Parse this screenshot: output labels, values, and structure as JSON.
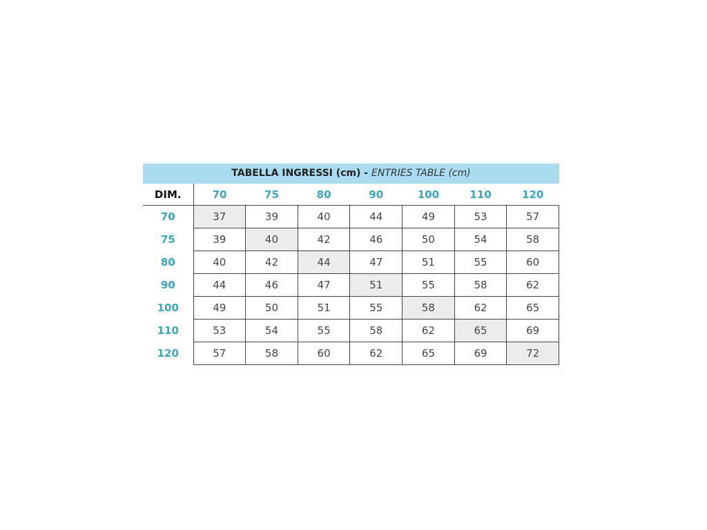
{
  "title": {
    "bold": "TABELLA INGRESSI (cm) - ",
    "italic": "ENTRIES TABLE (cm)"
  },
  "corner_label": "DIM.",
  "column_headers": [
    "70",
    "75",
    "80",
    "90",
    "100",
    "110",
    "120"
  ],
  "rows": [
    {
      "label": "70",
      "values": [
        "37",
        "39",
        "40",
        "44",
        "49",
        "53",
        "57"
      ]
    },
    {
      "label": "75",
      "values": [
        "39",
        "40",
        "42",
        "46",
        "50",
        "54",
        "58"
      ]
    },
    {
      "label": "80",
      "values": [
        "40",
        "42",
        "44",
        "47",
        "51",
        "55",
        "60"
      ]
    },
    {
      "label": "90",
      "values": [
        "44",
        "46",
        "47",
        "51",
        "55",
        "58",
        "62"
      ]
    },
    {
      "label": "100",
      "values": [
        "49",
        "50",
        "51",
        "55",
        "58",
        "62",
        "65"
      ]
    },
    {
      "label": "110",
      "values": [
        "53",
        "54",
        "55",
        "58",
        "62",
        "65",
        "69"
      ]
    },
    {
      "label": "120",
      "values": [
        "57",
        "58",
        "60",
        "62",
        "65",
        "69",
        "72"
      ]
    }
  ],
  "colors": {
    "band": "#a9dcef",
    "header_text": "#3aa6bf",
    "diagonal_fill": "#ececec"
  }
}
